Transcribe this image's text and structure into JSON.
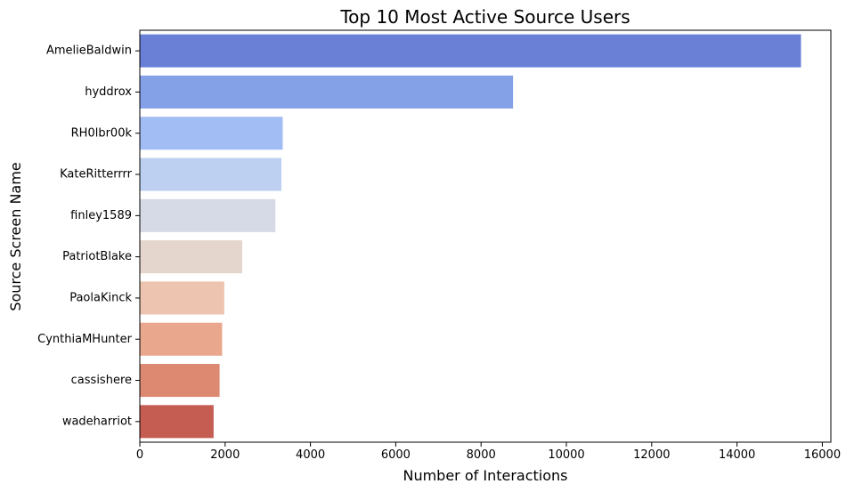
{
  "chart_data": {
    "type": "bar",
    "orientation": "horizontal",
    "title": "Top 10 Most Active Source Users",
    "xlabel": "Number of Interactions",
    "ylabel": "Source Screen Name",
    "xlim": [
      0,
      16200
    ],
    "xticks": [
      0,
      2000,
      4000,
      6000,
      8000,
      10000,
      12000,
      14000,
      16000
    ],
    "grid": false,
    "categories": [
      "AmelieBaldwin",
      "hyddrox",
      "RH0lbr00k",
      "KateRitterrrr",
      "finley1589",
      "PatriotBlake",
      "PaolaKinck",
      "CynthiaMHunter",
      "cassishere",
      "wadeharriot"
    ],
    "values": [
      15500,
      8750,
      3350,
      3320,
      3180,
      2400,
      1980,
      1930,
      1870,
      1730
    ],
    "colors": [
      "#6a80d6",
      "#84a1e8",
      "#a2bcf4",
      "#bdd0f2",
      "#d5dae6",
      "#e5d6cd",
      "#edc4af",
      "#e9a78d",
      "#dd8972",
      "#c55d52"
    ]
  }
}
